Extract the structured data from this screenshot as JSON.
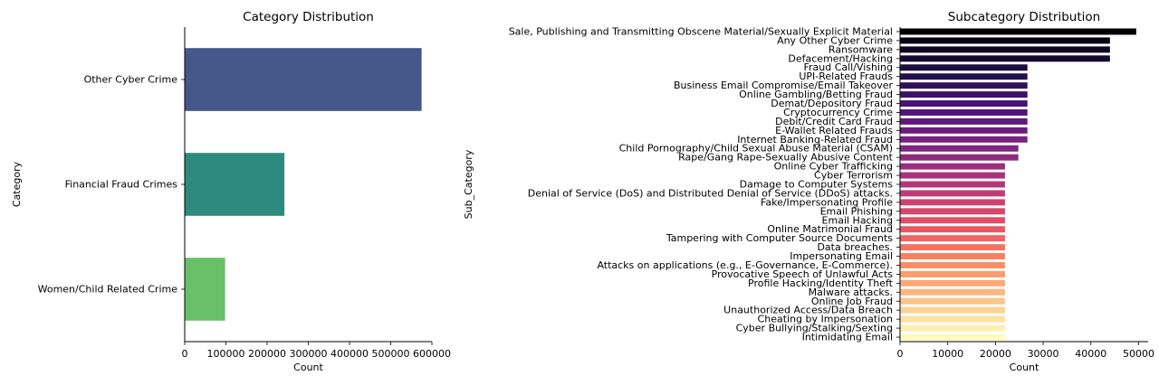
{
  "chart_data": [
    {
      "type": "bar",
      "orientation": "horizontal",
      "title": "Category Distribution",
      "xlabel": "Count",
      "ylabel": "Category",
      "categories": [
        "Other Cyber Crime",
        "Financial Fraud Crimes",
        "Women/Child Related Crime"
      ],
      "values": [
        575000,
        242000,
        98000
      ],
      "colors": [
        "#46578a",
        "#2e8a7e",
        "#6abf69"
      ],
      "xlim": [
        0,
        600000
      ],
      "xticks": [
        0,
        100000,
        200000,
        300000,
        400000,
        500000,
        600000
      ],
      "xtick_labels": [
        "0",
        "100000",
        "200000",
        "300000",
        "400000",
        "500000",
        "600000"
      ],
      "grid": false
    },
    {
      "type": "bar",
      "orientation": "horizontal",
      "title": "Subcategory Distribution",
      "xlabel": "Count",
      "ylabel": "Sub_Category",
      "palette": "magma",
      "categories": [
        "Sale, Publishing and Transmitting Obscene Material/Sexually Explicit Material",
        "Any Other Cyber Crime",
        "Ransomware",
        "Defacement/Hacking",
        "Fraud Call/Vishing",
        "UPI-Related Frauds",
        "Business Email Compromise/Email Takeover",
        "Online Gambling/Betting Fraud",
        "Demat/Depository Fraud",
        "Cryptocurrency Crime",
        "Debit/Credit Card Fraud",
        "E-Wallet Related Frauds",
        "Internet Banking-Related Fraud",
        "Child Pornography/Child Sexual Abuse Material (CSAM)",
        "Rape/Gang Rape-Sexually Abusive Content",
        "Online Cyber Trafficking",
        "Cyber Terrorism",
        "Damage to Computer Systems",
        "Denial of Service (DoS) and Distributed Denial of Service (DDoS) attacks.",
        "Fake/Impersonating Profile",
        "Email Phishing",
        "Email Hacking",
        "Online Matrimonial Fraud",
        "Tampering with Computer Source Documents",
        "Data breaches.",
        "Impersonating Email",
        "Attacks on applications (e.g., E-Governance, E-Commerce).",
        "Provocative Speech of Unlawful Acts",
        "Profile Hacking/Identity Theft",
        "Malware attacks.",
        "Online Job Fraud",
        "Unauthorized Access/Data Breach",
        "Cheating by Impersonation",
        "Cyber Bullying/Stalking/Sexting",
        "Intimidating Email"
      ],
      "values": [
        49500,
        44000,
        44000,
        44000,
        26700,
        26700,
        26700,
        26700,
        26700,
        26700,
        26700,
        26700,
        26700,
        24800,
        24800,
        22000,
        22000,
        22000,
        22000,
        22000,
        22000,
        22000,
        22000,
        22000,
        22000,
        22000,
        22000,
        22000,
        22000,
        22000,
        22000,
        22000,
        22000,
        22000,
        22000
      ],
      "xlim": [
        0,
        52000
      ],
      "xticks": [
        0,
        10000,
        20000,
        30000,
        40000,
        50000
      ],
      "xtick_labels": [
        "0",
        "10000",
        "20000",
        "30000",
        "40000",
        "50000"
      ],
      "grid": false
    }
  ]
}
